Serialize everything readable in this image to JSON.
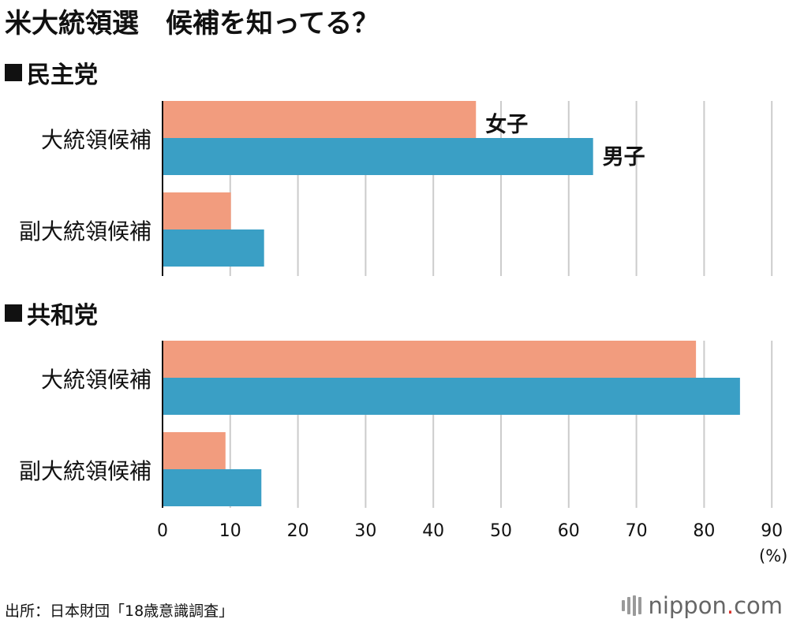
{
  "title": "米大統領選　候補を知ってる？",
  "source": "出所：日本財団「18歳意識調査」",
  "brand": {
    "name": "nippon",
    "dot": ".",
    "tld": "com"
  },
  "colors": {
    "female": "#f29c7e",
    "male": "#3a9fc5",
    "grid": "#cccccc",
    "axis": "#111111"
  },
  "chart_data": {
    "type": "bar",
    "orientation": "horizontal",
    "unit": "(%)",
    "xlim": [
      0,
      90
    ],
    "xticks": [
      0,
      10,
      20,
      30,
      40,
      50,
      60,
      70,
      80,
      90
    ],
    "grid": true,
    "series_labels": {
      "female": "女子",
      "male": "男子"
    },
    "groups": [
      {
        "name": "民主党",
        "categories": [
          "大統領候補",
          "副大統領候補"
        ],
        "female": [
          46.3,
          10.1
        ],
        "male": [
          63.6,
          15.0
        ]
      },
      {
        "name": "共和党",
        "categories": [
          "大統領候補",
          "副大統領候補"
        ],
        "female": [
          78.8,
          9.3
        ],
        "male": [
          85.3,
          14.6
        ]
      }
    ]
  }
}
